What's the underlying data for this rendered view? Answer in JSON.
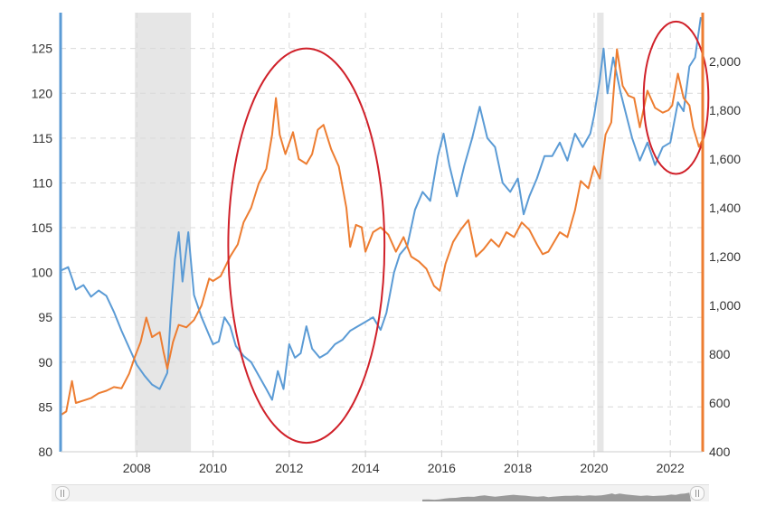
{
  "chart_data": {
    "type": "line",
    "title": "",
    "xlabel": "",
    "x_ticks": [
      "2008",
      "2010",
      "2012",
      "2014",
      "2016",
      "2018",
      "2020",
      "2022"
    ],
    "xlim": [
      2006.0,
      2022.85
    ],
    "left_axis": {
      "ylim": [
        80,
        129
      ],
      "ticks": [
        "80",
        "85",
        "90",
        "95",
        "100",
        "105",
        "110",
        "115",
        "120",
        "125"
      ],
      "color": "#5b9bd5"
    },
    "right_axis": {
      "ylim": [
        400,
        2200
      ],
      "ticks": [
        "400",
        "600",
        "800",
        "1,000",
        "1,200",
        "1,400",
        "1,600",
        "1,800",
        "2,000"
      ],
      "color": "#ed7d31"
    },
    "recession_bands": [
      {
        "from": 2007.95,
        "to": 2009.42
      },
      {
        "from": 2020.08,
        "to": 2020.25
      }
    ],
    "series": [
      {
        "name": "blue-series",
        "axis": "left",
        "color": "#5b9bd5",
        "points": [
          [
            2006.0,
            100.2
          ],
          [
            2006.2,
            100.6
          ],
          [
            2006.4,
            98.1
          ],
          [
            2006.6,
            98.6
          ],
          [
            2006.8,
            97.3
          ],
          [
            2007.0,
            98.0
          ],
          [
            2007.2,
            97.4
          ],
          [
            2007.4,
            95.6
          ],
          [
            2007.6,
            93.5
          ],
          [
            2007.8,
            91.6
          ],
          [
            2008.0,
            89.7
          ],
          [
            2008.2,
            88.5
          ],
          [
            2008.4,
            87.5
          ],
          [
            2008.6,
            87.0
          ],
          [
            2008.8,
            88.8
          ],
          [
            2008.9,
            96.0
          ],
          [
            2009.0,
            101.5
          ],
          [
            2009.1,
            104.5
          ],
          [
            2009.2,
            99.0
          ],
          [
            2009.35,
            104.5
          ],
          [
            2009.5,
            97.5
          ],
          [
            2009.7,
            95.0
          ],
          [
            2009.9,
            93.0
          ],
          [
            2010.0,
            92.0
          ],
          [
            2010.15,
            92.3
          ],
          [
            2010.3,
            95.0
          ],
          [
            2010.45,
            94.0
          ],
          [
            2010.6,
            91.8
          ],
          [
            2010.8,
            90.7
          ],
          [
            2011.0,
            90.0
          ],
          [
            2011.2,
            88.5
          ],
          [
            2011.4,
            87.0
          ],
          [
            2011.55,
            85.8
          ],
          [
            2011.7,
            89.0
          ],
          [
            2011.85,
            87.0
          ],
          [
            2012.0,
            92.0
          ],
          [
            2012.15,
            90.5
          ],
          [
            2012.3,
            91.0
          ],
          [
            2012.45,
            94.0
          ],
          [
            2012.6,
            91.5
          ],
          [
            2012.8,
            90.5
          ],
          [
            2013.0,
            91.0
          ],
          [
            2013.2,
            92.0
          ],
          [
            2013.4,
            92.5
          ],
          [
            2013.6,
            93.5
          ],
          [
            2013.8,
            94.0
          ],
          [
            2014.0,
            94.5
          ],
          [
            2014.2,
            95.0
          ],
          [
            2014.4,
            93.6
          ],
          [
            2014.55,
            95.5
          ],
          [
            2014.75,
            100.0
          ],
          [
            2014.9,
            102.0
          ],
          [
            2015.1,
            103.0
          ],
          [
            2015.3,
            107.0
          ],
          [
            2015.5,
            109.0
          ],
          [
            2015.7,
            108.0
          ],
          [
            2015.9,
            113.0
          ],
          [
            2016.05,
            115.5
          ],
          [
            2016.2,
            112.0
          ],
          [
            2016.4,
            108.5
          ],
          [
            2016.6,
            112.0
          ],
          [
            2016.8,
            115.0
          ],
          [
            2017.0,
            118.5
          ],
          [
            2017.2,
            115.0
          ],
          [
            2017.4,
            114.0
          ],
          [
            2017.6,
            110.0
          ],
          [
            2017.8,
            109.0
          ],
          [
            2018.0,
            110.5
          ],
          [
            2018.15,
            106.5
          ],
          [
            2018.3,
            108.5
          ],
          [
            2018.5,
            110.5
          ],
          [
            2018.7,
            113.0
          ],
          [
            2018.9,
            113.0
          ],
          [
            2019.1,
            114.5
          ],
          [
            2019.3,
            112.5
          ],
          [
            2019.5,
            115.5
          ],
          [
            2019.7,
            114.0
          ],
          [
            2019.9,
            115.5
          ],
          [
            2020.0,
            117.5
          ],
          [
            2020.15,
            121.5
          ],
          [
            2020.25,
            125.0
          ],
          [
            2020.35,
            120.0
          ],
          [
            2020.5,
            124.0
          ],
          [
            2020.7,
            120.0
          ],
          [
            2020.85,
            117.5
          ],
          [
            2021.0,
            115.0
          ],
          [
            2021.2,
            112.5
          ],
          [
            2021.4,
            114.5
          ],
          [
            2021.6,
            112.0
          ],
          [
            2021.8,
            114.0
          ],
          [
            2022.0,
            114.5
          ],
          [
            2022.2,
            119.0
          ],
          [
            2022.35,
            118.0
          ],
          [
            2022.5,
            123.0
          ],
          [
            2022.65,
            124.0
          ],
          [
            2022.8,
            128.5
          ]
        ]
      },
      {
        "name": "orange-series",
        "axis": "right",
        "color": "#ed7d31",
        "points": [
          [
            2006.0,
            550
          ],
          [
            2006.15,
            565
          ],
          [
            2006.3,
            690
          ],
          [
            2006.4,
            600
          ],
          [
            2006.6,
            610
          ],
          [
            2006.8,
            620
          ],
          [
            2007.0,
            640
          ],
          [
            2007.2,
            650
          ],
          [
            2007.4,
            665
          ],
          [
            2007.6,
            660
          ],
          [
            2007.8,
            720
          ],
          [
            2007.95,
            790
          ],
          [
            2008.1,
            850
          ],
          [
            2008.25,
            950
          ],
          [
            2008.4,
            870
          ],
          [
            2008.6,
            890
          ],
          [
            2008.7,
            810
          ],
          [
            2008.8,
            740
          ],
          [
            2008.95,
            850
          ],
          [
            2009.1,
            920
          ],
          [
            2009.3,
            910
          ],
          [
            2009.5,
            940
          ],
          [
            2009.7,
            1000
          ],
          [
            2009.9,
            1110
          ],
          [
            2010.0,
            1100
          ],
          [
            2010.2,
            1120
          ],
          [
            2010.45,
            1200
          ],
          [
            2010.65,
            1250
          ],
          [
            2010.8,
            1340
          ],
          [
            2011.0,
            1400
          ],
          [
            2011.2,
            1500
          ],
          [
            2011.4,
            1560
          ],
          [
            2011.55,
            1700
          ],
          [
            2011.65,
            1850
          ],
          [
            2011.75,
            1700
          ],
          [
            2011.9,
            1620
          ],
          [
            2012.1,
            1710
          ],
          [
            2012.25,
            1600
          ],
          [
            2012.45,
            1580
          ],
          [
            2012.6,
            1620
          ],
          [
            2012.75,
            1720
          ],
          [
            2012.9,
            1740
          ],
          [
            2013.1,
            1640
          ],
          [
            2013.3,
            1570
          ],
          [
            2013.5,
            1400
          ],
          [
            2013.6,
            1240
          ],
          [
            2013.75,
            1330
          ],
          [
            2013.9,
            1320
          ],
          [
            2014.0,
            1220
          ],
          [
            2014.2,
            1300
          ],
          [
            2014.4,
            1320
          ],
          [
            2014.6,
            1290
          ],
          [
            2014.8,
            1220
          ],
          [
            2015.0,
            1280
          ],
          [
            2015.2,
            1200
          ],
          [
            2015.4,
            1180
          ],
          [
            2015.6,
            1150
          ],
          [
            2015.8,
            1080
          ],
          [
            2015.95,
            1060
          ],
          [
            2016.1,
            1170
          ],
          [
            2016.3,
            1260
          ],
          [
            2016.5,
            1310
          ],
          [
            2016.7,
            1350
          ],
          [
            2016.9,
            1200
          ],
          [
            2017.1,
            1230
          ],
          [
            2017.3,
            1270
          ],
          [
            2017.5,
            1240
          ],
          [
            2017.7,
            1300
          ],
          [
            2017.9,
            1280
          ],
          [
            2018.1,
            1340
          ],
          [
            2018.3,
            1310
          ],
          [
            2018.5,
            1250
          ],
          [
            2018.65,
            1210
          ],
          [
            2018.8,
            1220
          ],
          [
            2018.95,
            1260
          ],
          [
            2019.1,
            1300
          ],
          [
            2019.3,
            1280
          ],
          [
            2019.5,
            1390
          ],
          [
            2019.65,
            1510
          ],
          [
            2019.85,
            1480
          ],
          [
            2020.0,
            1570
          ],
          [
            2020.15,
            1520
          ],
          [
            2020.3,
            1700
          ],
          [
            2020.45,
            1750
          ],
          [
            2020.6,
            2050
          ],
          [
            2020.75,
            1900
          ],
          [
            2020.9,
            1860
          ],
          [
            2021.05,
            1850
          ],
          [
            2021.2,
            1730
          ],
          [
            2021.4,
            1880
          ],
          [
            2021.6,
            1810
          ],
          [
            2021.8,
            1790
          ],
          [
            2021.95,
            1800
          ],
          [
            2022.05,
            1820
          ],
          [
            2022.2,
            1950
          ],
          [
            2022.35,
            1850
          ],
          [
            2022.5,
            1820
          ],
          [
            2022.6,
            1730
          ],
          [
            2022.75,
            1650
          ],
          [
            2022.85,
            1680
          ]
        ]
      }
    ],
    "annotations": [
      {
        "type": "ellipse",
        "color": "#d0212a",
        "center": [
          2012.45,
          103.0
        ],
        "rx_years": 2.05,
        "ry_units": 22.0
      },
      {
        "type": "ellipse",
        "color": "#d0212a",
        "center": [
          2022.15,
          119.5
        ],
        "rx_years": 0.85,
        "ry_units": 8.5
      }
    ]
  },
  "navigator": {
    "left_handle_icon": "grip-icon",
    "right_handle_icon": "grip-icon"
  }
}
